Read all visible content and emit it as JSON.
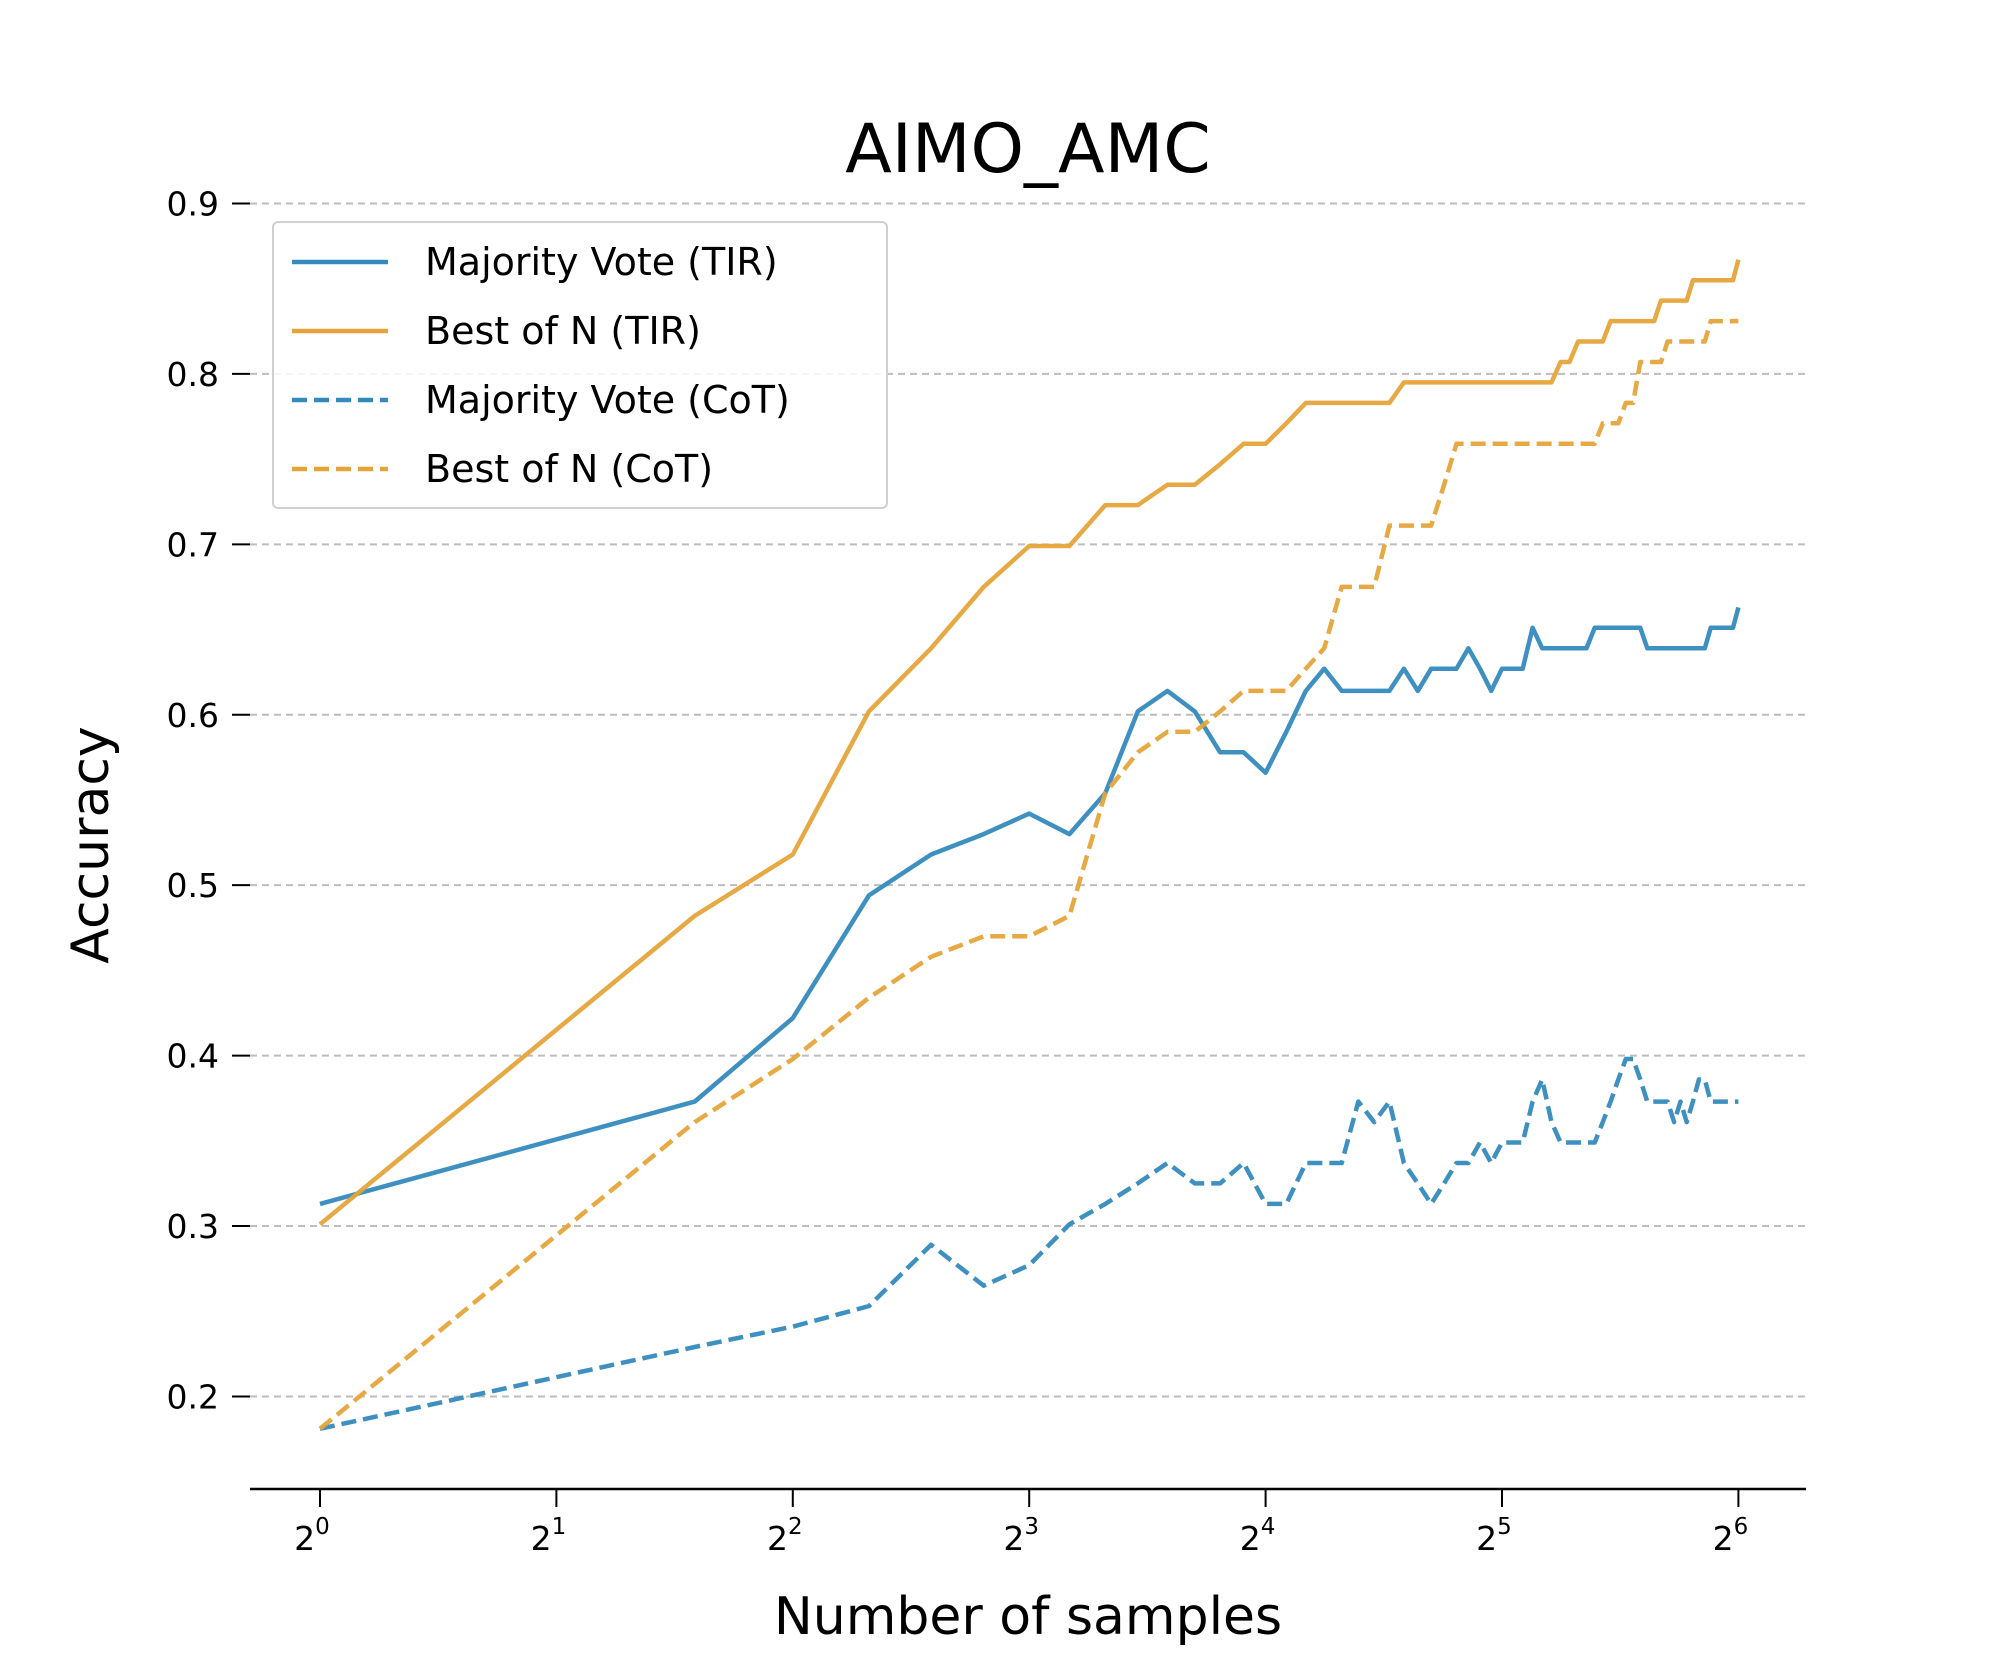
{
  "chart_data": {
    "type": "line",
    "title": "AIMO_AMC",
    "xlabel": "Number of samples",
    "ylabel": "Accuracy",
    "xscale": "log2",
    "xlim": [
      1,
      64
    ],
    "ylim": [
      0.15,
      0.9
    ],
    "xticks": [
      {
        "value": 1,
        "base": "2",
        "exp": "0"
      },
      {
        "value": 2,
        "base": "2",
        "exp": "1"
      },
      {
        "value": 4,
        "base": "2",
        "exp": "2"
      },
      {
        "value": 8,
        "base": "2",
        "exp": "3"
      },
      {
        "value": 16,
        "base": "2",
        "exp": "4"
      },
      {
        "value": 32,
        "base": "2",
        "exp": "5"
      },
      {
        "value": 64,
        "base": "2",
        "exp": "6"
      }
    ],
    "yticks": [
      {
        "value": 0.2,
        "label": "0.2"
      },
      {
        "value": 0.3,
        "label": "0.3"
      },
      {
        "value": 0.4,
        "label": "0.4"
      },
      {
        "value": 0.5,
        "label": "0.5"
      },
      {
        "value": 0.6,
        "label": "0.6"
      },
      {
        "value": 0.7,
        "label": "0.7"
      },
      {
        "value": 0.8,
        "label": "0.8"
      },
      {
        "value": 0.9,
        "label": "0.9"
      }
    ],
    "grid": "horizontal dashed",
    "legend_position": "top-left",
    "x": [
      1,
      3,
      4,
      5,
      6,
      7,
      8,
      9,
      10,
      11,
      12,
      13,
      14,
      15,
      16,
      17,
      18,
      19,
      20,
      21,
      22,
      23,
      24,
      25,
      26,
      27,
      28,
      29,
      30,
      31,
      32,
      33,
      34,
      35,
      36,
      37,
      38,
      39,
      40,
      41,
      42,
      43,
      44,
      45,
      46,
      47,
      48,
      49,
      50,
      51,
      52,
      53,
      54,
      55,
      56,
      57,
      58,
      59,
      60,
      61,
      62,
      63,
      64
    ],
    "series": [
      {
        "name": "Majority Vote (TIR)",
        "color": "#348ABD",
        "style": "solid",
        "values": [
          0.313,
          0.373,
          0.422,
          0.494,
          0.518,
          0.53,
          0.542,
          0.53,
          0.554,
          0.602,
          0.614,
          0.602,
          0.578,
          0.578,
          0.566,
          0.59,
          0.614,
          0.627,
          0.614,
          0.614,
          0.614,
          0.614,
          0.627,
          0.614,
          0.627,
          0.627,
          0.627,
          0.639,
          0.627,
          0.614,
          0.627,
          0.627,
          0.627,
          0.651,
          0.639,
          0.639,
          0.639,
          0.639,
          0.639,
          0.639,
          0.651,
          0.651,
          0.651,
          0.651,
          0.651,
          0.651,
          0.651,
          0.639,
          0.639,
          0.639,
          0.639,
          0.639,
          0.639,
          0.639,
          0.639,
          0.639,
          0.639,
          0.651,
          0.651,
          0.651,
          0.651,
          0.651,
          0.663
        ]
      },
      {
        "name": "Best of N (TIR)",
        "color": "#E5A43A",
        "style": "solid",
        "values": [
          0.301,
          0.482,
          0.518,
          0.602,
          0.639,
          0.675,
          0.699,
          0.699,
          0.723,
          0.723,
          0.735,
          0.735,
          0.747,
          0.759,
          0.759,
          0.771,
          0.783,
          0.783,
          0.783,
          0.783,
          0.783,
          0.783,
          0.795,
          0.795,
          0.795,
          0.795,
          0.795,
          0.795,
          0.795,
          0.795,
          0.795,
          0.795,
          0.795,
          0.795,
          0.795,
          0.795,
          0.807,
          0.807,
          0.819,
          0.819,
          0.819,
          0.819,
          0.831,
          0.831,
          0.831,
          0.831,
          0.831,
          0.831,
          0.831,
          0.843,
          0.843,
          0.843,
          0.843,
          0.843,
          0.855,
          0.855,
          0.855,
          0.855,
          0.855,
          0.855,
          0.855,
          0.855,
          0.867
        ]
      },
      {
        "name": "Majority Vote (CoT)",
        "color": "#348ABD",
        "style": "dashed",
        "values": [
          0.181,
          0.229,
          0.241,
          0.253,
          0.289,
          0.265,
          0.277,
          0.301,
          0.313,
          0.325,
          0.337,
          0.325,
          0.325,
          0.337,
          0.313,
          0.313,
          0.337,
          0.337,
          0.337,
          0.373,
          0.361,
          0.373,
          0.337,
          0.325,
          0.313,
          0.325,
          0.337,
          0.337,
          0.349,
          0.337,
          0.349,
          0.349,
          0.349,
          0.373,
          0.386,
          0.361,
          0.349,
          0.349,
          0.349,
          0.349,
          0.349,
          0.361,
          0.373,
          0.386,
          0.398,
          0.398,
          0.386,
          0.373,
          0.373,
          0.373,
          0.373,
          0.361,
          0.373,
          0.361,
          0.373,
          0.386,
          0.386,
          0.373,
          0.373,
          0.373,
          0.373,
          0.373,
          0.373
        ]
      },
      {
        "name": "Best of N (CoT)",
        "color": "#E5A43A",
        "style": "dashed",
        "values": [
          0.181,
          0.361,
          0.398,
          0.434,
          0.458,
          0.47,
          0.47,
          0.482,
          0.554,
          0.578,
          0.59,
          0.59,
          0.602,
          0.614,
          0.614,
          0.614,
          0.627,
          0.639,
          0.675,
          0.675,
          0.675,
          0.711,
          0.711,
          0.711,
          0.711,
          0.735,
          0.759,
          0.759,
          0.759,
          0.759,
          0.759,
          0.759,
          0.759,
          0.759,
          0.759,
          0.759,
          0.759,
          0.759,
          0.759,
          0.759,
          0.759,
          0.771,
          0.771,
          0.771,
          0.783,
          0.783,
          0.807,
          0.807,
          0.807,
          0.807,
          0.819,
          0.819,
          0.819,
          0.819,
          0.819,
          0.819,
          0.819,
          0.831,
          0.831,
          0.831,
          0.831,
          0.831,
          0.831
        ]
      }
    ]
  }
}
